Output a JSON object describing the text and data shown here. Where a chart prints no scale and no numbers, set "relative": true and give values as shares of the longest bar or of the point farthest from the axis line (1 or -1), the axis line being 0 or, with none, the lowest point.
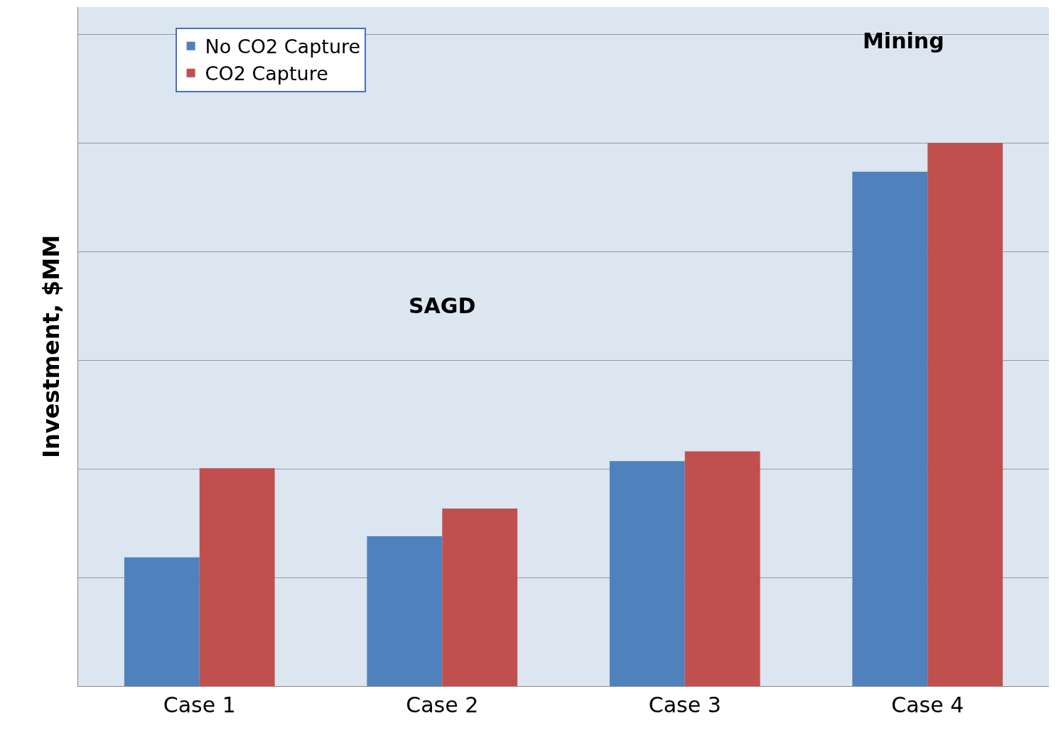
{
  "chart_data": {
    "type": "bar",
    "relative": true,
    "ylabel": "Investment, $MM",
    "categories": [
      "Case 1",
      "Case 2",
      "Case 3",
      "Case 4"
    ],
    "series": [
      {
        "name": "No CO2 Capture",
        "color": "#4f81bd",
        "values": [
          0.237,
          0.276,
          0.414,
          0.947
        ]
      },
      {
        "name": "CO2 Capture",
        "color": "#c0504d",
        "values": [
          0.401,
          0.327,
          0.432,
          1
        ]
      }
    ],
    "annotations": [
      "SAGD",
      "Mining"
    ],
    "grid": "y",
    "legend": "top left"
  }
}
